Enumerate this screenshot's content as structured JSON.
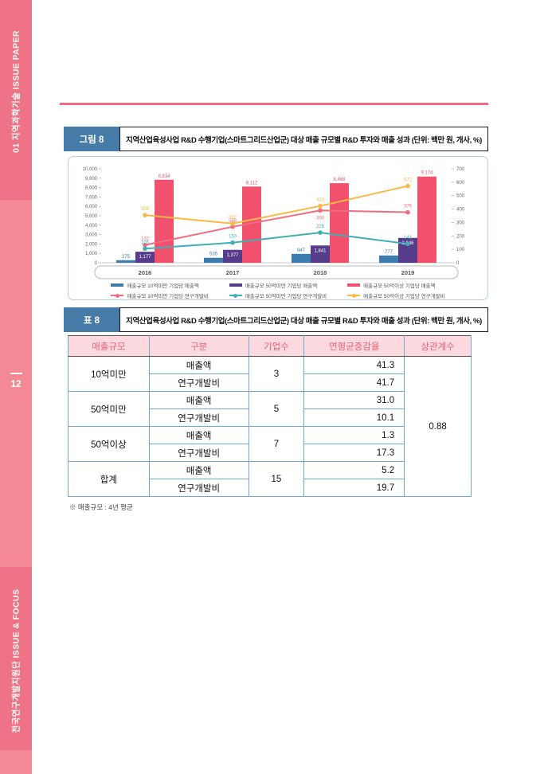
{
  "sidebar": {
    "top_label": "01 지역과학기술 ISSUE PAPER",
    "page_number": "12",
    "bottom_label": "전국연구개발지원단 ISSUE & FOCUS"
  },
  "figure": {
    "tag": "그림 8",
    "title": "지역산업육성사업 R&D 수행기업(스마트그리드산업군) 대상 매출 규모별 R&D 투자와 매출 성과 (단위: 백만 원, 개사, %)"
  },
  "chart_data": {
    "type": "bar-line-combo",
    "categories": [
      "2016",
      "2017",
      "2018",
      "2019"
    ],
    "left_axis": {
      "min": 0,
      "max": 10000,
      "step": 1000
    },
    "right_axis": {
      "min": 0,
      "max": 700,
      "step": 100
    },
    "grid": false,
    "legend_position": "bottom",
    "bar_series": [
      {
        "name": "매출규모 10억미만 기업당 매출액",
        "color": "#3d7dad",
        "axis": "left",
        "label_style": "above",
        "values": [
          275,
          535,
          947,
          777
        ]
      },
      {
        "name": "매출규모 50억미만 기업당 매출액",
        "color": "#563c8b",
        "axis": "left",
        "label_style": "inside",
        "values": [
          1177,
          1377,
          1841,
          2646
        ]
      },
      {
        "name": "매출규모 50억이상 기업당 매출액",
        "color": "#f2516e",
        "axis": "left",
        "label_style": "above",
        "values": [
          8834,
          8112,
          8468,
          9174
        ]
      }
    ],
    "line_series": [
      {
        "name": "매출규모 10억미만 기업당 연구개발비",
        "color": "#f16c7f",
        "axis": "right",
        "values": [
          132,
          268,
          390,
          376
        ],
        "label_offsets": [
          -6,
          -6,
          11,
          -6
        ]
      },
      {
        "name": "매출규모 50억미만 기업당 연구개발비",
        "color": "#3fafb4",
        "axis": "right",
        "values": [
          105,
          150,
          225,
          141
        ]
      },
      {
        "name": "매출규모 50억이상 기업당 연구개발비",
        "color": "#f9b942",
        "axis": "right",
        "values": [
          355,
          292,
          423,
          572
        ]
      }
    ]
  },
  "table": {
    "tag": "표 8",
    "title": "지역산업육성사업 R&D 수행기업(스마트그리드산업군) 대상 매출 규모별 R&D 투자와 매출 성과 (단위: 백만 원, 개사, %)",
    "headers": [
      "매출규모",
      "구분",
      "기업수",
      "연평균증감율",
      "상관계수"
    ],
    "groups": [
      {
        "label": "10억미만",
        "count": "3",
        "rows": [
          {
            "label": "매출액",
            "value": "41.3"
          },
          {
            "label": "연구개발비",
            "value": "41.7"
          }
        ]
      },
      {
        "label": "50억미만",
        "count": "5",
        "rows": [
          {
            "label": "매출액",
            "value": "31.0"
          },
          {
            "label": "연구개발비",
            "value": "10.1"
          }
        ]
      },
      {
        "label": "50억이상",
        "count": "7",
        "rows": [
          {
            "label": "매출액",
            "value": "1.3"
          },
          {
            "label": "연구개발비",
            "value": "17.3"
          }
        ]
      },
      {
        "label": "합계",
        "count": "15",
        "rows": [
          {
            "label": "매출액",
            "value": "5.2"
          },
          {
            "label": "연구개발비",
            "value": "19.7"
          }
        ]
      }
    ],
    "correlation": "0.88",
    "footnote": "※ 매출규모 : 4년 평균"
  },
  "colors": {
    "sidebar_pink": "#f28994",
    "sidebar_block_pink": "#ee7386",
    "top_rule_pink": "#f5697e",
    "caption_tag_blue": "#477ba8",
    "chart_border_blue": "#b7cee3",
    "table_border_blue": "#70aad2",
    "table_header_bg": "#fcd9de",
    "table_header_text": "#ee6277"
  }
}
